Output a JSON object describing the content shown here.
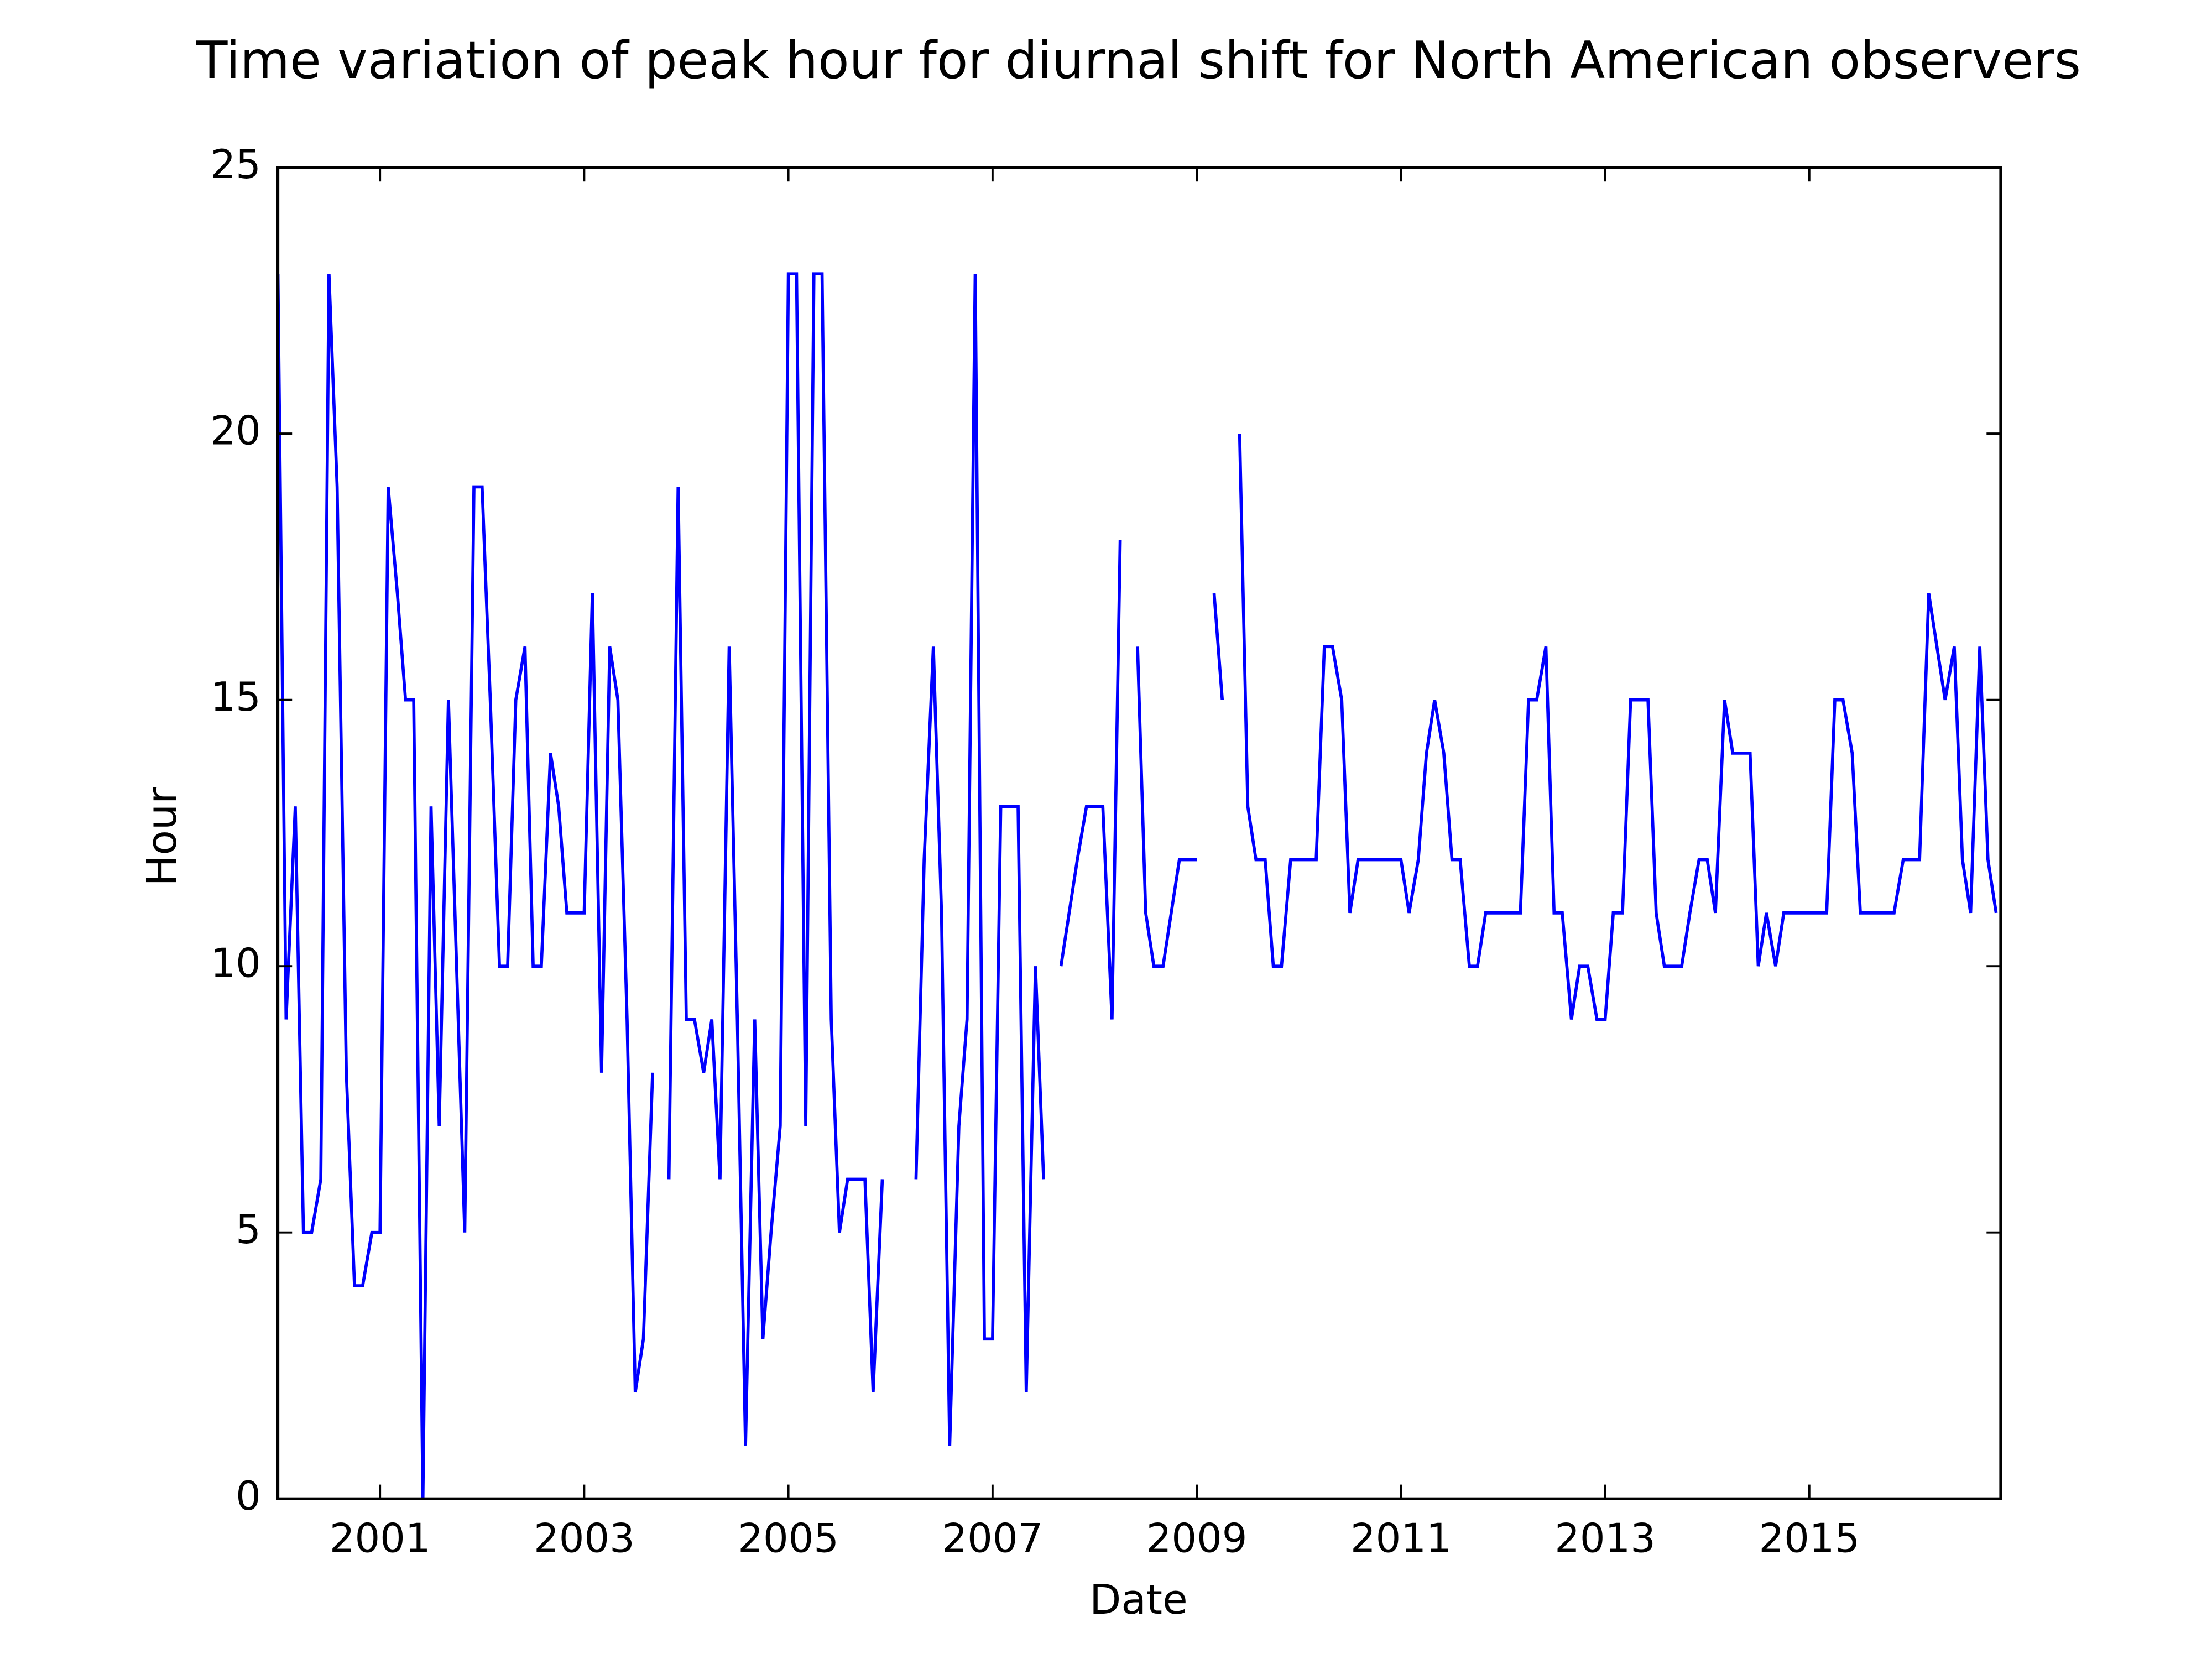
{
  "chart_data": {
    "type": "line",
    "title": "Time variation of peak hour for diurnal shift for North American observers",
    "x_label": "Date",
    "y_label": "Hour",
    "x": [
      2000,
      2000.08,
      2000.17,
      2000.25,
      2000.33,
      2000.42,
      2000.5,
      2000.58,
      2000.67,
      2000.75,
      2000.83,
      2000.92,
      2001,
      2001.08,
      2001.17,
      2001.25,
      2001.33,
      2001.42,
      2001.5,
      2001.58,
      2001.67,
      2001.75,
      2001.83,
      2001.92,
      2002,
      2002.08,
      2002.17,
      2002.25,
      2002.33,
      2002.42,
      2002.5,
      2002.58,
      2002.67,
      2002.75,
      2002.83,
      2002.92,
      2003,
      2003.08,
      2003.17,
      2003.25,
      2003.33,
      2003.42,
      2003.5,
      2003.58,
      2003.67,
      2003.75,
      2003.83,
      2003.92,
      2004,
      2004.08,
      2004.17,
      2004.25,
      2004.33,
      2004.42,
      2004.5,
      2004.58,
      2004.67,
      2004.75,
      2004.83,
      2004.92,
      2005,
      2005.08,
      2005.17,
      2005.25,
      2005.33,
      2005.42,
      2005.5,
      2005.58,
      2005.67,
      2005.75,
      2005.83,
      2005.92,
      2006,
      2006.08,
      2006.17,
      2006.25,
      2006.33,
      2006.42,
      2006.5,
      2006.58,
      2006.67,
      2006.75,
      2006.83,
      2006.92,
      2007,
      2007.08,
      2007.17,
      2007.25,
      2007.33,
      2007.42,
      2007.5,
      2007.58,
      2007.67,
      2007.75,
      2007.83,
      2007.92,
      2008,
      2008.08,
      2008.17,
      2008.25,
      2008.33,
      2008.42,
      2008.5,
      2008.58,
      2008.67,
      2008.75,
      2008.83,
      2008.92,
      2009,
      2009.08,
      2009.17,
      2009.25,
      2009.33,
      2009.42,
      2009.5,
      2009.58,
      2009.67,
      2009.75,
      2009.83,
      2009.92,
      2010,
      2010.08,
      2010.17,
      2010.25,
      2010.33,
      2010.42,
      2010.5,
      2010.58,
      2010.67,
      2010.75,
      2010.83,
      2010.92,
      2011,
      2011.08,
      2011.17,
      2011.25,
      2011.33,
      2011.42,
      2011.5,
      2011.58,
      2011.67,
      2011.75,
      2011.83,
      2011.92,
      2012,
      2012.08,
      2012.17,
      2012.25,
      2012.33,
      2012.42,
      2012.5,
      2012.58,
      2012.67,
      2012.75,
      2012.83,
      2012.92,
      2013,
      2013.08,
      2013.17,
      2013.25,
      2013.33,
      2013.42,
      2013.5,
      2013.58,
      2013.67,
      2013.75,
      2013.83,
      2013.92,
      2014,
      2014.08,
      2014.17,
      2014.25,
      2014.33,
      2014.42,
      2014.5,
      2014.58,
      2014.67,
      2014.75,
      2014.83,
      2014.92,
      2015,
      2015.08,
      2015.17,
      2015.25,
      2015.33,
      2015.42,
      2015.5,
      2015.58,
      2015.67,
      2015.75,
      2015.83,
      2015.92,
      2016,
      2016.08,
      2016.17,
      2016.25,
      2016.33,
      2016.42,
      2016.5,
      2016.58,
      2016.67,
      2016.75,
      2016.83
    ],
    "series": [
      {
        "color": "#0000ff",
        "values": [
          23,
          9,
          13,
          5,
          5,
          6,
          23,
          19,
          8,
          4,
          4,
          5,
          5,
          19,
          17,
          15,
          15,
          0,
          13,
          7,
          15,
          10,
          5,
          19,
          19,
          15,
          10,
          10,
          15,
          16,
          10,
          10,
          14,
          13,
          11,
          11,
          11,
          17,
          8,
          16,
          15,
          9,
          2,
          3,
          8,
          null,
          6,
          19,
          9,
          9,
          8,
          9,
          6,
          16,
          9,
          1,
          9,
          3,
          5,
          7,
          23,
          23,
          7,
          23,
          23,
          9,
          5,
          6,
          6,
          6,
          2,
          6,
          null,
          null,
          null,
          6,
          12,
          16,
          11,
          1,
          7,
          9,
          23,
          3,
          3,
          13,
          13,
          13,
          2,
          10,
          6,
          null,
          10,
          11,
          12,
          13,
          13,
          13,
          9,
          18,
          null,
          16,
          11,
          10,
          10,
          11,
          12,
          12,
          12,
          null,
          17,
          15,
          null,
          20,
          13,
          12,
          12,
          10,
          10,
          12,
          12,
          12,
          12,
          16,
          16,
          15,
          11,
          12,
          12,
          12,
          12,
          12,
          12,
          11,
          12,
          14,
          15,
          14,
          12,
          12,
          10,
          10,
          11,
          11,
          11,
          11,
          11,
          15,
          15,
          16,
          11,
          11,
          9,
          10,
          10,
          9,
          9,
          11,
          11,
          15,
          15,
          15,
          11,
          10,
          10,
          10,
          11,
          12,
          12,
          11,
          15,
          14,
          14,
          14,
          10,
          11,
          10,
          11,
          11,
          11,
          11,
          11,
          11,
          15,
          15,
          14,
          11,
          11,
          11,
          11,
          11,
          12,
          12,
          12,
          17,
          16,
          15,
          16,
          12,
          11,
          16,
          12,
          11
        ]
      }
    ],
    "xlim": [
      2000,
      2016.875
    ],
    "xticks": [
      2001,
      2003,
      2005,
      2007,
      2009,
      2011,
      2013,
      2015
    ],
    "ylim": [
      0,
      25
    ],
    "yticks": [
      0,
      5,
      10,
      15,
      20,
      25
    ],
    "grid": false
  }
}
